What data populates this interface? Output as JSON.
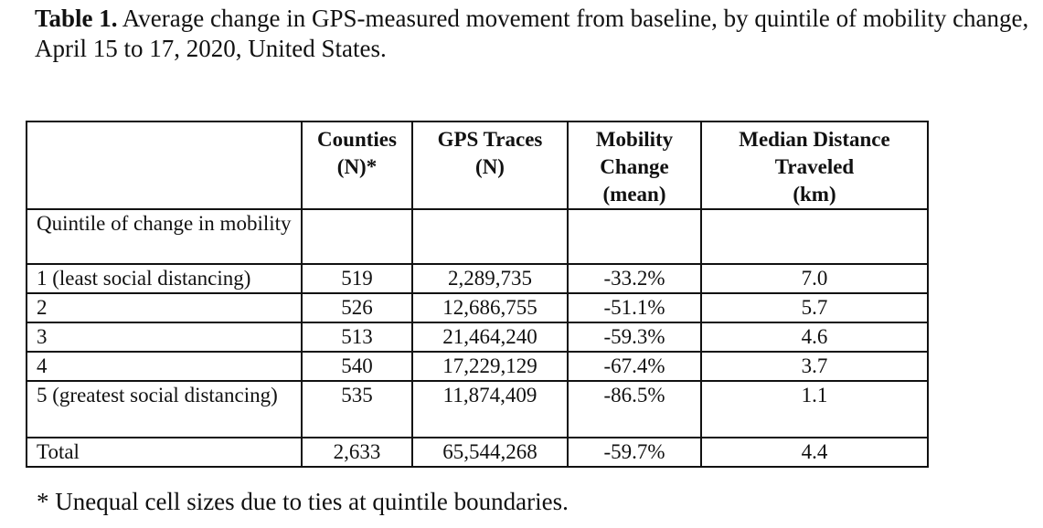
{
  "caption": {
    "label": "Table 1.",
    "text": " Average change in GPS-measured movement from baseline, by quintile of mobility change, April 15 to 17, 2020, United States."
  },
  "table": {
    "headers": [
      "",
      "Counties (N)*",
      "GPS Traces (N)",
      "Mobility Change (mean)",
      "Median Distance Traveled (km)"
    ],
    "section_label": "Quintile of change in mobility",
    "rows": [
      {
        "label": "1 (least social distancing)",
        "counties": "519",
        "gps_traces": "2,289,735",
        "mobility_change": "-33.2%",
        "median_distance": "7.0"
      },
      {
        "label": "2",
        "counties": "526",
        "gps_traces": "12,686,755",
        "mobility_change": "-51.1%",
        "median_distance": "5.7"
      },
      {
        "label": "3",
        "counties": "513",
        "gps_traces": "21,464,240",
        "mobility_change": "-59.3%",
        "median_distance": "4.6"
      },
      {
        "label": "4",
        "counties": "540",
        "gps_traces": "17,229,129",
        "mobility_change": "-67.4%",
        "median_distance": "3.7"
      },
      {
        "label": "5 (greatest social distancing)",
        "counties": "535",
        "gps_traces": "11,874,409",
        "mobility_change": "-86.5%",
        "median_distance": "1.1"
      }
    ],
    "total": {
      "label": "Total",
      "counties": "2,633",
      "gps_traces": "65,544,268",
      "mobility_change": "-59.7%",
      "median_distance": "4.4"
    }
  },
  "footnote": "* Unequal cell sizes due to ties at quintile boundaries."
}
